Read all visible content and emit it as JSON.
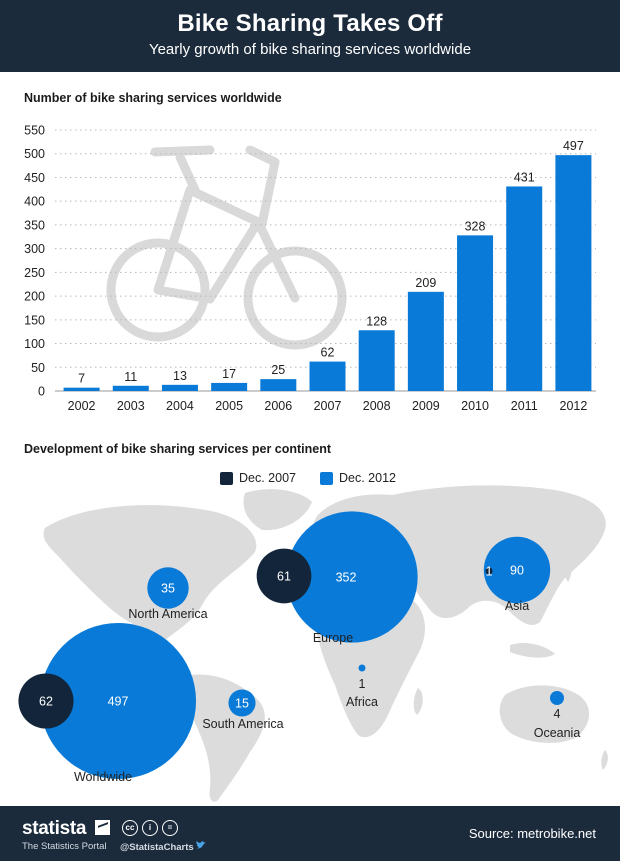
{
  "header": {
    "title": "Bike Sharing Takes Off",
    "subtitle": "Yearly growth of bike sharing services worldwide"
  },
  "chart_data": [
    {
      "type": "bar",
      "title": "Number of bike sharing services worldwide",
      "categories": [
        "2002",
        "2003",
        "2004",
        "2005",
        "2006",
        "2007",
        "2008",
        "2009",
        "2010",
        "2011",
        "2012"
      ],
      "values": [
        7,
        11,
        13,
        17,
        25,
        62,
        128,
        209,
        328,
        431,
        497
      ],
      "yticks": [
        "550",
        "500",
        "450",
        "400",
        "350",
        "300",
        "250",
        "200",
        "150",
        "100",
        "50",
        "0"
      ],
      "ylim": [
        0,
        550
      ],
      "xlabel": "",
      "ylabel": "",
      "grid": true,
      "color": "#0a7ad8",
      "illustration": "bicycle-icon"
    },
    {
      "type": "bubble-map",
      "title": "Development of bike sharing services per continent",
      "legend": [
        {
          "label": "Dec. 2007",
          "color": "#12253a"
        },
        {
          "label": "Dec. 2012",
          "color": "#0a7ad8"
        }
      ],
      "regions": [
        {
          "name": "North America",
          "dec_2007": null,
          "dec_2012": 35,
          "label_2007": "",
          "label_2012": "35"
        },
        {
          "name": "Europe",
          "dec_2007": 61,
          "dec_2012": 352,
          "label_2007": "61",
          "label_2012": "352"
        },
        {
          "name": "Asia",
          "dec_2007": 1,
          "dec_2012": 90,
          "label_2007": "1",
          "label_2012": "90"
        },
        {
          "name": "South America",
          "dec_2007": null,
          "dec_2012": 15,
          "label_2007": "",
          "label_2012": "15"
        },
        {
          "name": "Africa",
          "dec_2007": null,
          "dec_2012": 1,
          "label_2007": "",
          "label_2012": "1"
        },
        {
          "name": "Oceania",
          "dec_2007": null,
          "dec_2012": 4,
          "label_2007": "",
          "label_2012": "4"
        },
        {
          "name": "Worldwide",
          "dec_2007": 62,
          "dec_2012": 497,
          "label_2007": "62",
          "label_2012": "497"
        }
      ]
    }
  ],
  "footer": {
    "brand": "statista",
    "portal": "The Statistics Portal",
    "handle": "@StatistaCharts",
    "license_icons": [
      "cc",
      "i",
      "="
    ],
    "source": "Source: metrobike.net"
  }
}
